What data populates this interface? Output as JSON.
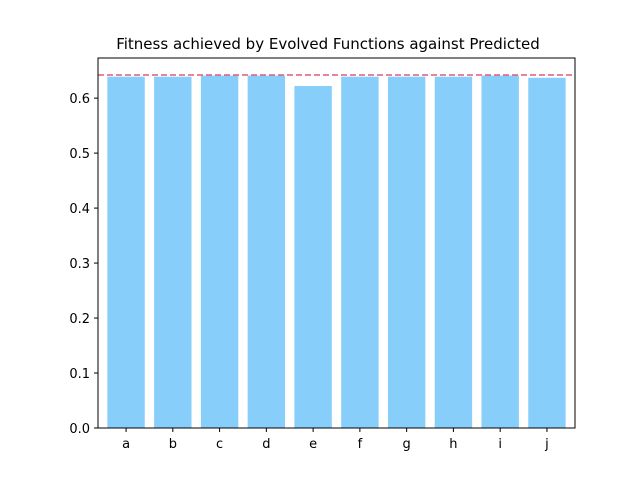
{
  "chart_data": {
    "type": "bar",
    "title": "Fitness achieved by Evolved Functions against Predicted",
    "xlabel": "",
    "ylabel": "",
    "categories": [
      "a",
      "b",
      "c",
      "d",
      "e",
      "f",
      "g",
      "h",
      "i",
      "j"
    ],
    "values": [
      0.639,
      0.639,
      0.641,
      0.641,
      0.622,
      0.639,
      0.639,
      0.639,
      0.641,
      0.637
    ],
    "ylim": [
      0,
      0.673
    ],
    "yticks": [
      0.0,
      0.1,
      0.2,
      0.3,
      0.4,
      0.5,
      0.6
    ],
    "ytick_labels": [
      "0.0",
      "0.1",
      "0.2",
      "0.3",
      "0.4",
      "0.5",
      "0.6"
    ],
    "reference_line": {
      "value": 0.642,
      "style": "dashed",
      "color": "#e05a7a"
    },
    "bar_color": "#87cefa",
    "grid": false,
    "legend": "none"
  }
}
